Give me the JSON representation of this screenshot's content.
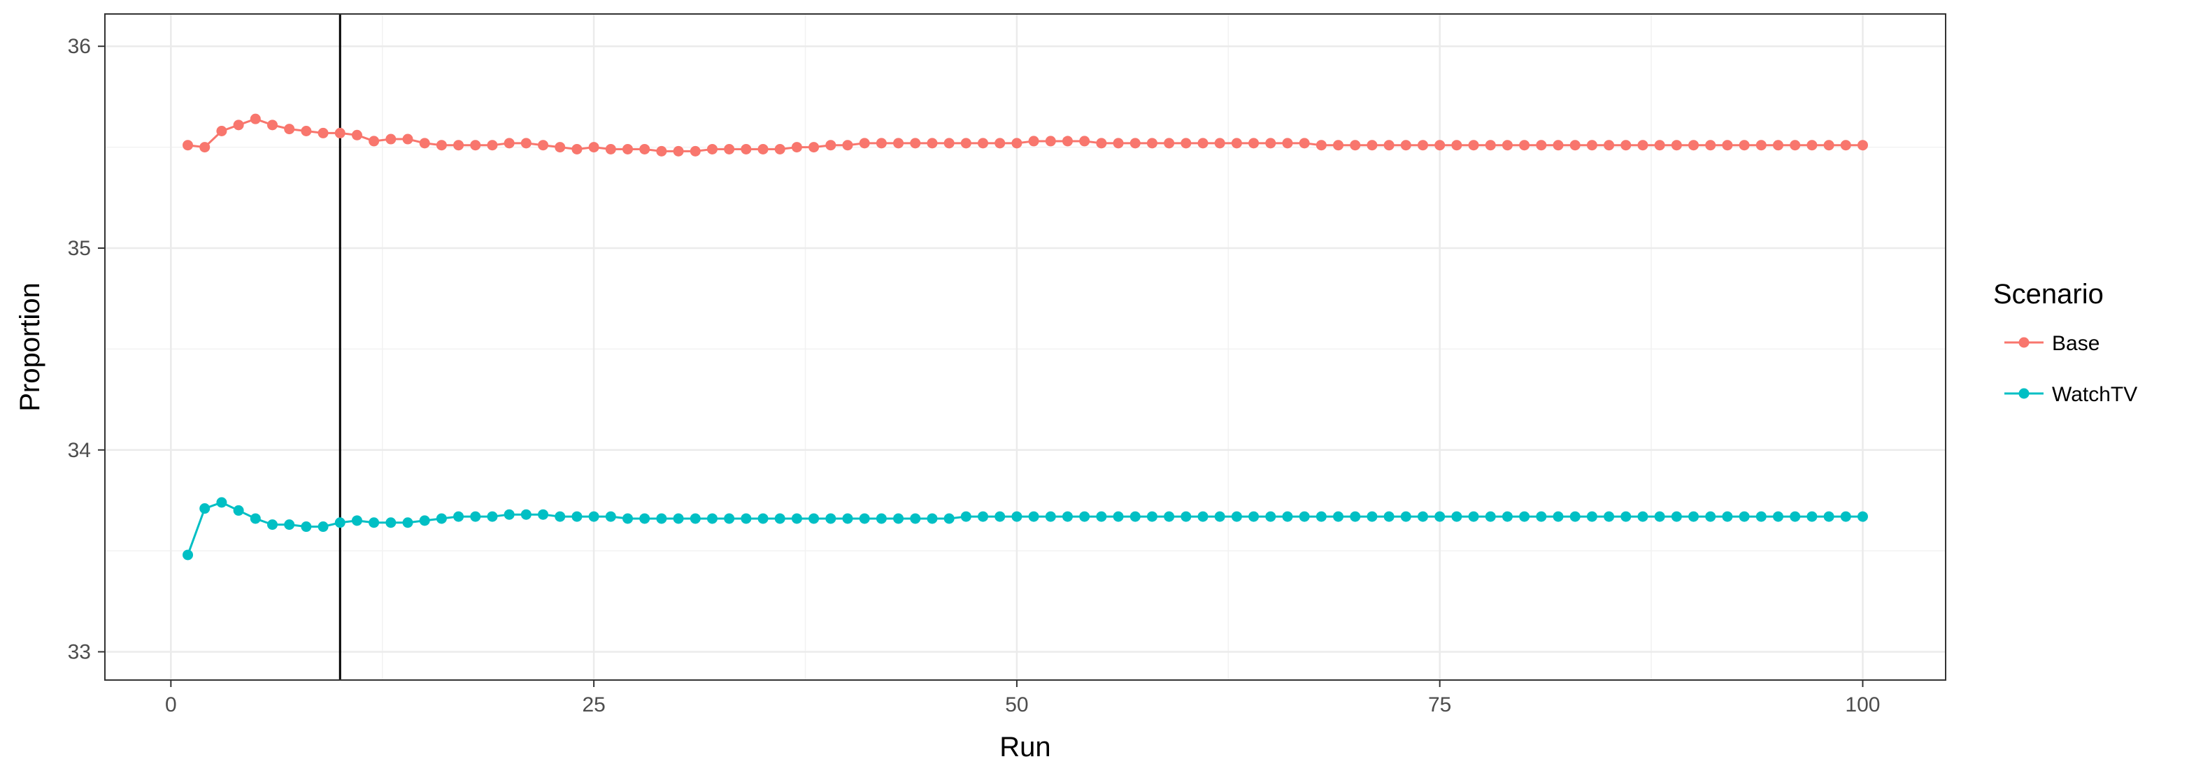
{
  "chart_data": {
    "type": "line",
    "title": "",
    "xlabel": "Run",
    "ylabel": "Proportion",
    "xlim": [
      -3.9,
      104.9
    ],
    "ylim": [
      32.86,
      36.16
    ],
    "x_ticks": [
      0,
      25,
      50,
      75,
      100
    ],
    "x_tick_labels": [
      "0",
      "25",
      "50",
      "75",
      "100"
    ],
    "y_ticks": [
      33,
      34,
      35,
      36
    ],
    "y_tick_labels": [
      "33",
      "34",
      "35",
      "36"
    ],
    "grid": true,
    "vline_x": 10,
    "legend": {
      "title": "Scenario",
      "placement": "right"
    },
    "x": [
      1,
      2,
      3,
      4,
      5,
      6,
      7,
      8,
      9,
      10,
      11,
      12,
      13,
      14,
      15,
      16,
      17,
      18,
      19,
      20,
      21,
      22,
      23,
      24,
      25,
      26,
      27,
      28,
      29,
      30,
      31,
      32,
      33,
      34,
      35,
      36,
      37,
      38,
      39,
      40,
      41,
      42,
      43,
      44,
      45,
      46,
      47,
      48,
      49,
      50,
      51,
      52,
      53,
      54,
      55,
      56,
      57,
      58,
      59,
      60,
      61,
      62,
      63,
      64,
      65,
      66,
      67,
      68,
      69,
      70,
      71,
      72,
      73,
      74,
      75,
      76,
      77,
      78,
      79,
      80,
      81,
      82,
      83,
      84,
      85,
      86,
      87,
      88,
      89,
      90,
      91,
      92,
      93,
      94,
      95,
      96,
      97,
      98,
      99,
      100
    ],
    "series": [
      {
        "name": "Base",
        "color": "#F8766D",
        "values": [
          35.51,
          35.5,
          35.58,
          35.61,
          35.64,
          35.61,
          35.59,
          35.58,
          35.57,
          35.57,
          35.56,
          35.53,
          35.54,
          35.54,
          35.52,
          35.51,
          35.51,
          35.51,
          35.51,
          35.52,
          35.52,
          35.51,
          35.5,
          35.49,
          35.5,
          35.49,
          35.49,
          35.49,
          35.48,
          35.48,
          35.48,
          35.49,
          35.49,
          35.49,
          35.49,
          35.49,
          35.5,
          35.5,
          35.51,
          35.51,
          35.52,
          35.52,
          35.52,
          35.52,
          35.52,
          35.52,
          35.52,
          35.52,
          35.52,
          35.52,
          35.53,
          35.53,
          35.53,
          35.53,
          35.52,
          35.52,
          35.52,
          35.52,
          35.52,
          35.52,
          35.52,
          35.52,
          35.52,
          35.52,
          35.52,
          35.52,
          35.52,
          35.51,
          35.51,
          35.51,
          35.51,
          35.51,
          35.51,
          35.51,
          35.51,
          35.51,
          35.51,
          35.51,
          35.51,
          35.51,
          35.51,
          35.51,
          35.51,
          35.51,
          35.51,
          35.51,
          35.51,
          35.51,
          35.51,
          35.51,
          35.51,
          35.51,
          35.51,
          35.51,
          35.51,
          35.51,
          35.51,
          35.51,
          35.51,
          35.51
        ]
      },
      {
        "name": "WatchTV",
        "color": "#00BFC4",
        "values": [
          33.48,
          33.71,
          33.74,
          33.7,
          33.66,
          33.63,
          33.63,
          33.62,
          33.62,
          33.64,
          33.65,
          33.64,
          33.64,
          33.64,
          33.65,
          33.66,
          33.67,
          33.67,
          33.67,
          33.68,
          33.68,
          33.68,
          33.67,
          33.67,
          33.67,
          33.67,
          33.66,
          33.66,
          33.66,
          33.66,
          33.66,
          33.66,
          33.66,
          33.66,
          33.66,
          33.66,
          33.66,
          33.66,
          33.66,
          33.66,
          33.66,
          33.66,
          33.66,
          33.66,
          33.66,
          33.66,
          33.67,
          33.67,
          33.67,
          33.67,
          33.67,
          33.67,
          33.67,
          33.67,
          33.67,
          33.67,
          33.67,
          33.67,
          33.67,
          33.67,
          33.67,
          33.67,
          33.67,
          33.67,
          33.67,
          33.67,
          33.67,
          33.67,
          33.67,
          33.67,
          33.67,
          33.67,
          33.67,
          33.67,
          33.67,
          33.67,
          33.67,
          33.67,
          33.67,
          33.67,
          33.67,
          33.67,
          33.67,
          33.67,
          33.67,
          33.67,
          33.67,
          33.67,
          33.67,
          33.67,
          33.67,
          33.67,
          33.67,
          33.67,
          33.67,
          33.67,
          33.67,
          33.67,
          33.67,
          33.67
        ]
      }
    ]
  }
}
